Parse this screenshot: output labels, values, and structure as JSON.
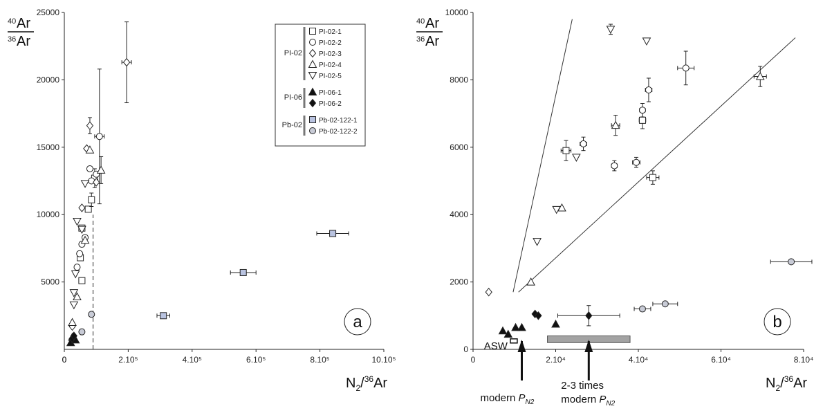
{
  "chart_data": [
    {
      "panel": "a",
      "type": "scatter",
      "ylabel": {
        "sup": "40",
        "main": "Ar",
        "sup2": "36",
        "main2": "Ar"
      },
      "xlabel": {
        "pre": "N",
        "sub": "2",
        "mid": "/",
        "sup": "36",
        "post": "Ar"
      },
      "xlim": [
        0,
        1000000
      ],
      "ylim": [
        0,
        25000
      ],
      "xticks": [
        {
          "v": 0,
          "label": "0"
        },
        {
          "v": 200000,
          "label": "2.10⁵"
        },
        {
          "v": 400000,
          "label": "4.10⁵"
        },
        {
          "v": 600000,
          "label": "6.10⁵"
        },
        {
          "v": 800000,
          "label": "8.10⁵"
        },
        {
          "v": 1000000,
          "label": "10.10⁵"
        }
      ],
      "yticks": [
        {
          "v": 5000,
          "label": "5000"
        },
        {
          "v": 10000,
          "label": "10000"
        },
        {
          "v": 15000,
          "label": "15000"
        },
        {
          "v": 20000,
          "label": "20000"
        },
        {
          "v": 25000,
          "label": "25000"
        }
      ],
      "dashed_line": {
        "x": 90000,
        "y_from": 0,
        "y_to": 10000
      },
      "legend": {
        "position": "top-right",
        "groups": [
          {
            "label": "PI-02",
            "entries": [
              "PI-02-1",
              "PI-02-2",
              "PI-02-3",
              "PI-02-4",
              "PI-02-5"
            ]
          },
          {
            "label": "PI-06",
            "entries": [
              "PI-06-1",
              "PI-06-2"
            ]
          },
          {
            "label": "Pb-02",
            "entries": [
              "Pb-02-122-1",
              "Pb-02-122-2"
            ]
          }
        ]
      },
      "series": [
        {
          "name": "PI-02-1",
          "marker": "square-open",
          "points": [
            {
              "x": 55000,
              "y": 5100
            },
            {
              "x": 50000,
              "y": 6800
            },
            {
              "x": 55000,
              "y": 9000
            },
            {
              "x": 75000,
              "y": 10400
            },
            {
              "x": 85000,
              "y": 11100,
              "ey": 500
            },
            {
              "x": 95000,
              "y": 12700,
              "ey": 700
            }
          ]
        },
        {
          "name": "PI-02-2",
          "marker": "circle-open",
          "points": [
            {
              "x": 40000,
              "y": 6100
            },
            {
              "x": 48000,
              "y": 7100
            },
            {
              "x": 55000,
              "y": 7800
            },
            {
              "x": 65000,
              "y": 8300
            },
            {
              "x": 80000,
              "y": 13400
            },
            {
              "x": 85000,
              "y": 12500
            },
            {
              "x": 100000,
              "y": 13000
            },
            {
              "x": 110000,
              "y": 15800,
              "ey": 5000,
              "ex": 15000
            }
          ]
        },
        {
          "name": "PI-02-3",
          "marker": "diamond-open",
          "points": [
            {
              "x": 25000,
              "y": 1700
            },
            {
              "x": 55000,
              "y": 10500
            },
            {
              "x": 70000,
              "y": 14900
            },
            {
              "x": 80000,
              "y": 16600,
              "ey": 600
            },
            {
              "x": 100000,
              "y": 12400
            },
            {
              "x": 195000,
              "y": 21300,
              "ey": 3000,
              "ex": 15000
            }
          ]
        },
        {
          "name": "PI-02-4",
          "marker": "triangle-up-open",
          "points": [
            {
              "x": 25000,
              "y": 2000
            },
            {
              "x": 40000,
              "y": 3900
            },
            {
              "x": 65000,
              "y": 8100
            },
            {
              "x": 80000,
              "y": 14800
            },
            {
              "x": 115000,
              "y": 13300,
              "ey": 1000
            }
          ]
        },
        {
          "name": "PI-02-5",
          "marker": "triangle-down-open",
          "points": [
            {
              "x": 30000,
              "y": 3300
            },
            {
              "x": 30000,
              "y": 4200
            },
            {
              "x": 35000,
              "y": 5600
            },
            {
              "x": 40000,
              "y": 9500
            },
            {
              "x": 55000,
              "y": 8900
            },
            {
              "x": 65000,
              "y": 12300
            }
          ]
        },
        {
          "name": "PI-06-1",
          "marker": "triangle-up-filled",
          "points": [
            {
              "x": 20000,
              "y": 500
            },
            {
              "x": 25000,
              "y": 900
            },
            {
              "x": 35000,
              "y": 700
            }
          ]
        },
        {
          "name": "PI-06-2",
          "marker": "diamond-filled",
          "points": [
            {
              "x": 25000,
              "y": 800
            },
            {
              "x": 30000,
              "y": 1000
            }
          ]
        },
        {
          "name": "Pb-02-122-1",
          "marker": "square-blue",
          "points": [
            {
              "x": 310000,
              "y": 2500,
              "ex": 20000
            },
            {
              "x": 560000,
              "y": 5700,
              "ex": 40000
            },
            {
              "x": 840000,
              "y": 8600,
              "ex": 50000
            }
          ]
        },
        {
          "name": "Pb-02-122-2",
          "marker": "circle-grey",
          "points": [
            {
              "x": 55000,
              "y": 1300
            },
            {
              "x": 85000,
              "y": 2600
            }
          ]
        }
      ]
    },
    {
      "panel": "b",
      "type": "scatter",
      "ylabel": {
        "sup": "40",
        "main": "Ar",
        "sup2": "36",
        "main2": "Ar"
      },
      "xlabel": {
        "pre": "N",
        "sub": "2",
        "mid": "/",
        "sup": "36",
        "post": "Ar"
      },
      "xlim": [
        0,
        80000
      ],
      "ylim": [
        0,
        10000
      ],
      "xticks": [
        {
          "v": 0,
          "label": "0"
        },
        {
          "v": 20000,
          "label": "2.10⁴"
        },
        {
          "v": 40000,
          "label": "4.10⁴"
        },
        {
          "v": 60000,
          "label": "6.10⁴"
        },
        {
          "v": 80000,
          "label": "8.10⁴"
        }
      ],
      "yticks": [
        {
          "v": 0,
          "label": "0"
        },
        {
          "v": 2000,
          "label": "2000"
        },
        {
          "v": 4000,
          "label": "4000"
        },
        {
          "v": 6000,
          "label": "6000"
        },
        {
          "v": 8000,
          "label": "8000"
        },
        {
          "v": 10000,
          "label": "10000"
        }
      ],
      "lines": [
        {
          "x1": 9700,
          "y1": 1700,
          "x2": 24000,
          "y2": 9800
        },
        {
          "x1": 11000,
          "y1": 1700,
          "x2": 78000,
          "y2": 9250
        }
      ],
      "asw": {
        "label": "ASW",
        "x": 9700,
        "y": 250
      },
      "grey_bar": {
        "x1": 18000,
        "x2": 38000,
        "y1": 200,
        "y2": 400
      },
      "annotations": [
        {
          "text": "modern P",
          "sub": "N2",
          "arrow_x": 11800
        },
        {
          "text": "2-3 times",
          "line2": "modern P",
          "sub": "N2",
          "arrow_x": 28000
        }
      ],
      "series": [
        {
          "name": "PI-02-1",
          "marker": "square-open",
          "points": [
            {
              "x": 22500,
              "y": 5900,
              "ex": 1200,
              "ey": 300
            },
            {
              "x": 41000,
              "y": 6800,
              "ex": 800,
              "ey": 250
            },
            {
              "x": 43500,
              "y": 5100,
              "ex": 1500,
              "ey": 200
            }
          ]
        },
        {
          "name": "PI-02-2",
          "marker": "circle-open",
          "points": [
            {
              "x": 26700,
              "y": 6100,
              "ex": 800,
              "ey": 200
            },
            {
              "x": 34200,
              "y": 5450,
              "ex": 700,
              "ey": 150
            },
            {
              "x": 39500,
              "y": 5550,
              "ex": 900,
              "ey": 150
            },
            {
              "x": 41000,
              "y": 7100,
              "ex": 700,
              "ey": 200
            },
            {
              "x": 42500,
              "y": 7700,
              "ex": 800,
              "ey": 350
            },
            {
              "x": 51500,
              "y": 8350,
              "ex": 2000,
              "ey": 500
            }
          ]
        },
        {
          "name": "PI-02-3",
          "marker": "diamond-open",
          "points": [
            {
              "x": 3800,
              "y": 1700
            }
          ]
        },
        {
          "name": "PI-02-4",
          "marker": "triangle-up-open",
          "points": [
            {
              "x": 14000,
              "y": 2000
            },
            {
              "x": 21500,
              "y": 4200
            },
            {
              "x": 34500,
              "y": 6650,
              "ex": 1000,
              "ey": 300
            },
            {
              "x": 69500,
              "y": 8100,
              "ex": 1500,
              "ey": 300
            }
          ]
        },
        {
          "name": "PI-02-5",
          "marker": "triangle-down-open",
          "points": [
            {
              "x": 15500,
              "y": 3200
            },
            {
              "x": 20200,
              "y": 4150
            },
            {
              "x": 25000,
              "y": 5700
            },
            {
              "x": 33300,
              "y": 9500,
              "ey": 150
            },
            {
              "x": 42000,
              "y": 9150
            }
          ]
        },
        {
          "name": "PI-06-1",
          "marker": "triangle-up-filled",
          "points": [
            {
              "x": 7200,
              "y": 550
            },
            {
              "x": 8500,
              "y": 450
            },
            {
              "x": 10300,
              "y": 650
            },
            {
              "x": 11800,
              "y": 650
            },
            {
              "x": 20000,
              "y": 750
            }
          ]
        },
        {
          "name": "PI-06-2",
          "marker": "diamond-filled",
          "points": [
            {
              "x": 15000,
              "y": 1050
            },
            {
              "x": 15800,
              "y": 1000
            },
            {
              "x": 28000,
              "y": 1000,
              "ex": 7500,
              "ey": 300
            }
          ]
        },
        {
          "name": "Pb-02-122-2",
          "marker": "circle-grey",
          "points": [
            {
              "x": 41000,
              "y": 1200,
              "ex": 2000
            },
            {
              "x": 46500,
              "y": 1350,
              "ex": 3000
            },
            {
              "x": 77000,
              "y": 2600,
              "ex": 5000
            }
          ]
        }
      ]
    }
  ]
}
